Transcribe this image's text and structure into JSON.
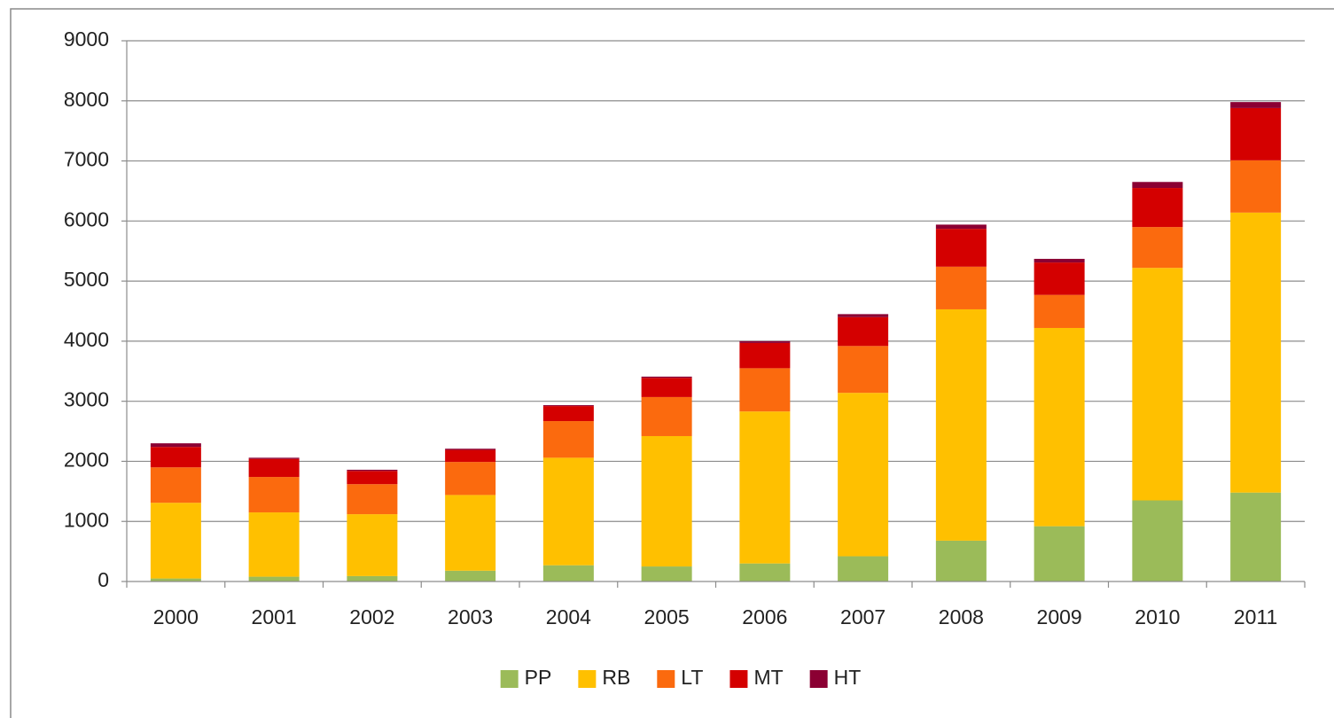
{
  "chart_data": {
    "type": "stacked_bar",
    "categories": [
      "2000",
      "2001",
      "2002",
      "2003",
      "2004",
      "2005",
      "2006",
      "2007",
      "2008",
      "2009",
      "2010",
      "2011"
    ],
    "series": [
      {
        "name": "PP",
        "color": "#9bbb59",
        "values": [
          50,
          80,
          90,
          180,
          270,
          250,
          300,
          420,
          680,
          920,
          1350,
          1480
        ]
      },
      {
        "name": "RB",
        "color": "#ffc000",
        "values": [
          1260,
          1070,
          1030,
          1260,
          1790,
          2170,
          2530,
          2720,
          3850,
          3300,
          3870,
          4660
        ]
      },
      {
        "name": "LT",
        "color": "#fb6a0e",
        "values": [
          590,
          590,
          500,
          550,
          610,
          650,
          720,
          780,
          710,
          550,
          680,
          870
        ]
      },
      {
        "name": "MT",
        "color": "#d40000",
        "values": [
          340,
          300,
          220,
          200,
          250,
          320,
          420,
          480,
          630,
          540,
          650,
          870
        ]
      },
      {
        "name": "HT",
        "color": "#8b0033",
        "values": [
          60,
          20,
          20,
          20,
          15,
          20,
          30,
          50,
          70,
          60,
          100,
          100
        ]
      }
    ],
    "ylim": [
      0,
      9000
    ],
    "yticks": [
      0,
      1000,
      2000,
      3000,
      4000,
      5000,
      6000,
      7000,
      8000,
      9000
    ],
    "grid": true,
    "legend": "bottom"
  }
}
